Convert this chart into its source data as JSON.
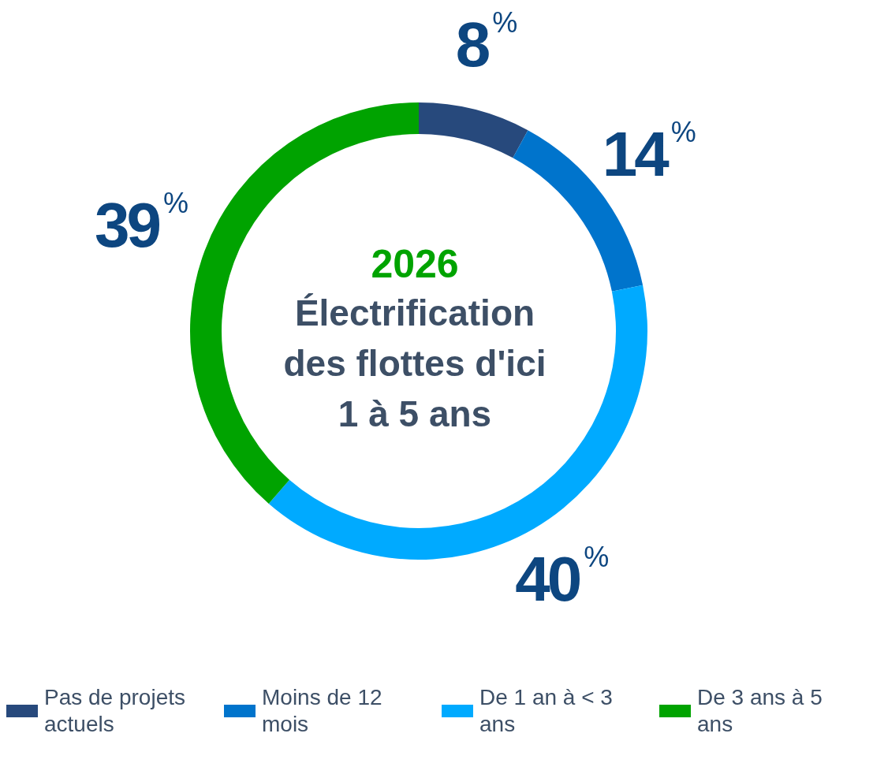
{
  "chart_data": {
    "type": "donut",
    "title": "2026",
    "subtitle": "Électrification des flottes d'ici 1 à 5 ans",
    "categories": [
      "Pas de projets actuels",
      "Moins de 12 mois",
      "De 1 an à < 3 ans",
      "De 3 ans à 5 ans"
    ],
    "values": [
      8,
      14,
      40,
      39
    ],
    "colors": [
      "#27497c",
      "#0074cc",
      "#00aaff",
      "#00a300"
    ],
    "value_labels": [
      "8$^{%}$",
      "14$^{%}$",
      "40$^{%}$",
      "39$^{%}$"
    ],
    "legend": "bottom"
  }
}
